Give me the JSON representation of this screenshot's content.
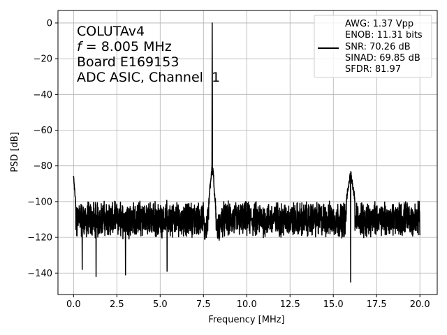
{
  "chart_data": {
    "type": "line",
    "xlabel": "Frequency [MHz]",
    "ylabel": "PSD [dB]",
    "xlim": [
      -0.9,
      21.0
    ],
    "ylim": [
      -152,
      7
    ],
    "xticks": [
      0.0,
      2.5,
      5.0,
      7.5,
      10.0,
      12.5,
      15.0,
      17.5,
      20.0
    ],
    "xtick_labels": [
      "0.0",
      "2.5",
      "5.0",
      "7.5",
      "10.0",
      "12.5",
      "15.0",
      "17.5",
      "20.0"
    ],
    "yticks": [
      0,
      -20,
      -40,
      -60,
      -80,
      -100,
      -120,
      -140
    ],
    "ytick_labels": [
      "0",
      "−20",
      "−40",
      "−60",
      "−80",
      "−100",
      "−120",
      "−140"
    ],
    "grid": true,
    "line_color": "#000000",
    "annotation": {
      "line1": "COLUTAv4",
      "line2_var": "f",
      "line2_rest": " = 8.005 MHz",
      "line3": "Board E169153",
      "line4": "ADC ASIC, Channel  1"
    },
    "legend": {
      "placement": "top-right",
      "entries": [
        "AWG: 1.37 Vpp",
        "ENOB: 11.31 bits",
        "SNR: 70.26 dB",
        "SINAD: 69.85 dB",
        "SFDR: 81.97"
      ]
    },
    "series": [
      {
        "noise_floor_db": -110,
        "noise_fluctuation_db": 8,
        "x_range": [
          0.0,
          20.0
        ],
        "features": [
          {
            "x": 0.0,
            "y": -86,
            "kind": "dc-edge"
          },
          {
            "x": 8.005,
            "y": 0,
            "kind": "fundamental"
          },
          {
            "x": 8.0,
            "y": -82,
            "kind": "fundamental-skirt"
          },
          {
            "x": 16.0,
            "y": -84,
            "kind": "harmonic"
          },
          {
            "x": 1.3,
            "y": -142,
            "kind": "dip"
          },
          {
            "x": 3.0,
            "y": -141,
            "kind": "dip"
          },
          {
            "x": 5.4,
            "y": -139,
            "kind": "dip"
          },
          {
            "x": 16.0,
            "y": -145,
            "kind": "dip"
          },
          {
            "x": 0.5,
            "y": -138,
            "kind": "dip"
          }
        ]
      }
    ]
  }
}
